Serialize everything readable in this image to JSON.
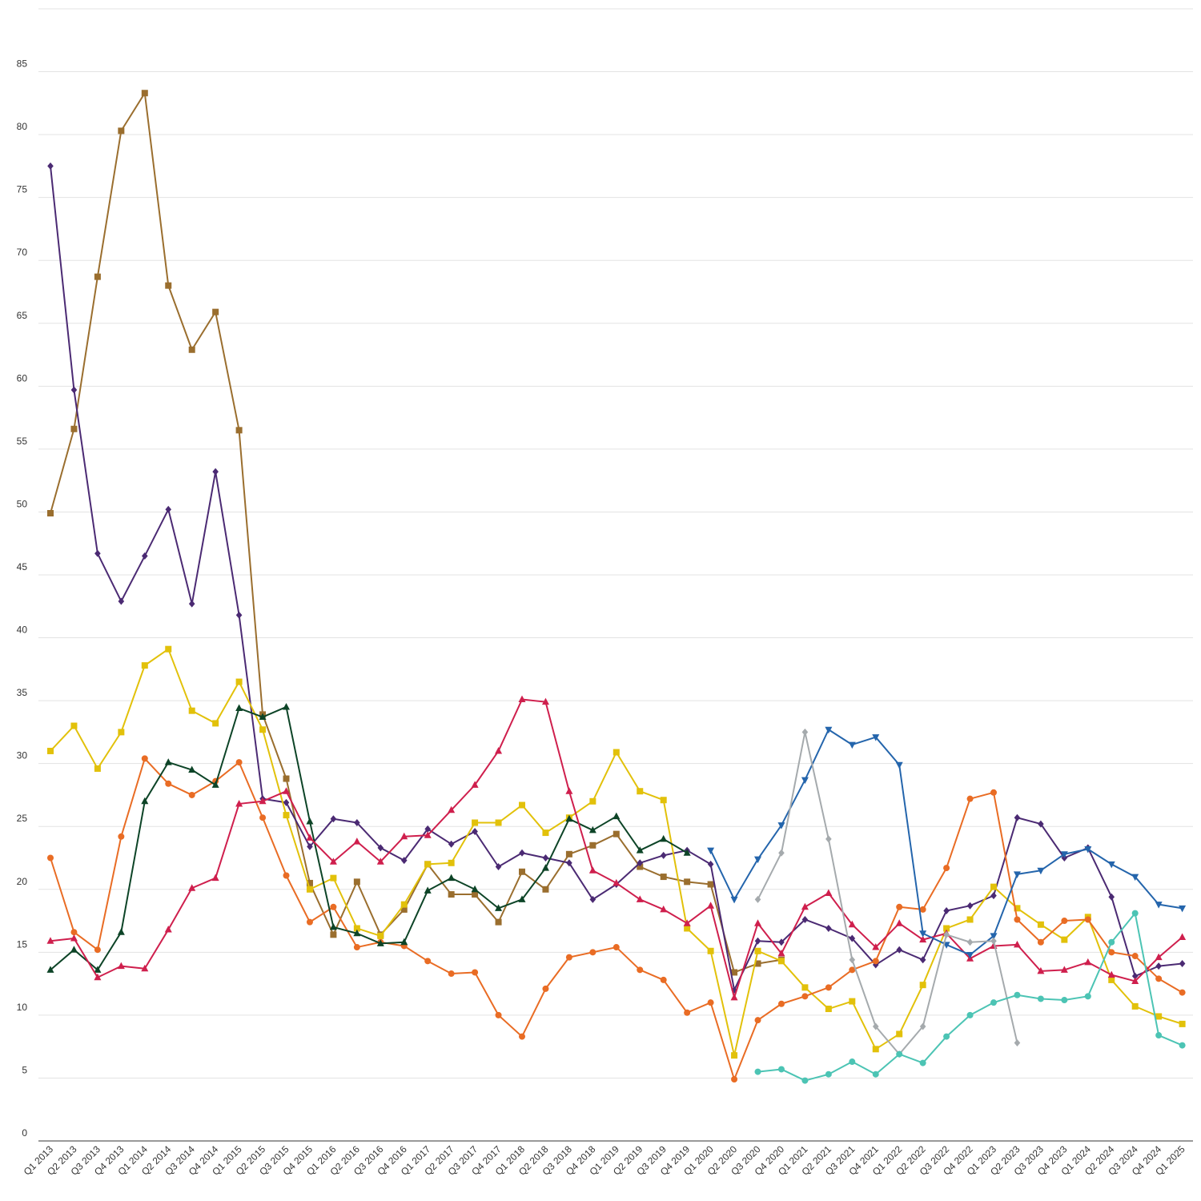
{
  "chart_data": {
    "type": "line",
    "title": "",
    "xlabel": "",
    "ylabel": "",
    "ylim": [
      0,
      90
    ],
    "y_ticks": [
      0,
      5,
      10,
      15,
      20,
      25,
      30,
      35,
      40,
      45,
      50,
      55,
      60,
      65,
      70,
      75,
      80,
      85
    ],
    "grid": true,
    "legend": "none",
    "categories": [
      "Q1 2013",
      "Q2 2013",
      "Q3 2013",
      "Q4 2013",
      "Q1 2014",
      "Q2 2014",
      "Q3 2014",
      "Q4 2014",
      "Q1 2015",
      "Q2 2015",
      "Q3 2015",
      "Q4 2015",
      "Q1 2016",
      "Q2 2016",
      "Q3 2016",
      "Q4 2016",
      "Q1 2017",
      "Q2 2017",
      "Q3 2017",
      "Q4 2017",
      "Q1 2018",
      "Q2 2018",
      "Q3 2018",
      "Q4 2018",
      "Q1 2019",
      "Q2 2019",
      "Q3 2019",
      "Q4 2019",
      "Q1 2020",
      "Q2 2020",
      "Q3 2020",
      "Q4 2020",
      "Q1 2021",
      "Q2 2021",
      "Q3 2021",
      "Q4 2021",
      "Q1 2022",
      "Q2 2022",
      "Q3 2022",
      "Q4 2022",
      "Q1 2023",
      "Q2 2023",
      "Q3 2023",
      "Q4 2023",
      "Q1 2024",
      "Q2 2024",
      "Q3 2024",
      "Q4 2024",
      "Q1 2025"
    ],
    "series": [
      {
        "color": "#9a6e2e",
        "marker": "square",
        "values": [
          49.9,
          56.6,
          68.7,
          80.3,
          83.3,
          68.0,
          62.9,
          65.9,
          56.5,
          33.9,
          28.8,
          20.5,
          16.4,
          20.6,
          16.4,
          18.4,
          22.0,
          19.6,
          19.6,
          17.4,
          21.4,
          20.0,
          22.8,
          23.5,
          24.4,
          21.8,
          21.0,
          20.6,
          20.4,
          13.4,
          14.1,
          14.4,
          null,
          null,
          null,
          null,
          null,
          null,
          null,
          null,
          null,
          null,
          null,
          null,
          null,
          null,
          null,
          null,
          null
        ]
      },
      {
        "color": "#4b2a73",
        "marker": "diamond",
        "values": [
          77.5,
          59.7,
          46.7,
          42.9,
          46.5,
          50.2,
          42.7,
          53.2,
          41.8,
          27.2,
          26.9,
          23.4,
          25.6,
          25.3,
          23.3,
          22.3,
          24.8,
          23.6,
          24.6,
          21.8,
          22.9,
          22.5,
          22.1,
          19.2,
          20.4,
          22.1,
          22.7,
          23.1,
          22.0,
          12.0,
          15.9,
          15.8,
          17.6,
          16.9,
          16.1,
          14.0,
          15.2,
          14.4,
          18.3,
          18.7,
          19.5,
          25.7,
          25.2,
          22.5,
          23.3,
          19.4,
          13.1,
          13.9,
          14.1
        ]
      },
      {
        "color": "#e2c10a",
        "marker": "square",
        "values": [
          31.0,
          33.0,
          29.6,
          32.5,
          37.8,
          39.1,
          34.2,
          33.2,
          36.5,
          32.7,
          25.9,
          20.0,
          20.9,
          16.9,
          16.3,
          18.8,
          22.0,
          22.1,
          25.3,
          25.3,
          26.7,
          24.5,
          25.7,
          27.0,
          30.9,
          27.8,
          27.1,
          16.9,
          15.1,
          6.8,
          15.1,
          14.3,
          12.2,
          10.5,
          11.1,
          7.3,
          8.5,
          12.4,
          16.9,
          17.6,
          20.2,
          18.5,
          17.2,
          16.0,
          17.8,
          12.8,
          10.7,
          9.9,
          9.3
        ]
      },
      {
        "color": "#e96c24",
        "marker": "circle",
        "values": [
          22.5,
          16.6,
          15.2,
          24.2,
          30.4,
          28.4,
          27.5,
          28.6,
          30.1,
          25.7,
          21.1,
          17.4,
          18.6,
          15.4,
          15.8,
          15.5,
          14.3,
          13.3,
          13.4,
          10.0,
          8.3,
          12.1,
          14.6,
          15.0,
          15.4,
          13.6,
          12.8,
          10.2,
          11.0,
          4.9,
          9.6,
          10.9,
          11.5,
          12.2,
          13.6,
          14.3,
          18.6,
          18.4,
          21.7,
          27.2,
          27.7,
          17.6,
          15.8,
          17.5,
          17.6,
          15.0,
          14.7,
          12.9,
          11.8
        ]
      },
      {
        "color": "#0d4427",
        "marker": "triangle",
        "values": [
          13.6,
          15.2,
          13.6,
          16.6,
          27.0,
          30.1,
          29.5,
          28.3,
          34.4,
          33.7,
          34.5,
          25.4,
          17.0,
          16.5,
          15.7,
          15.8,
          19.9,
          20.9,
          20.0,
          18.5,
          19.2,
          21.7,
          25.6,
          24.7,
          25.8,
          23.1,
          24.0,
          22.9,
          null,
          null,
          null,
          null,
          null,
          null,
          null,
          null,
          null,
          null,
          null,
          null,
          null,
          null,
          null,
          null,
          null,
          null,
          null,
          null,
          null
        ]
      },
      {
        "color": "#cf1f4d",
        "marker": "triangle",
        "values": [
          15.9,
          16.1,
          13.0,
          13.9,
          13.7,
          16.8,
          20.1,
          20.9,
          26.8,
          27.0,
          27.8,
          24.1,
          22.2,
          23.8,
          22.2,
          24.2,
          24.3,
          26.3,
          28.3,
          31.0,
          35.1,
          34.9,
          27.8,
          21.5,
          20.5,
          19.2,
          18.4,
          17.3,
          18.7,
          11.4,
          17.3,
          14.9,
          18.6,
          19.7,
          17.2,
          15.4,
          17.3,
          16.0,
          16.5,
          14.5,
          15.5,
          15.6,
          13.5,
          13.6,
          14.2,
          13.2,
          12.7,
          14.6,
          16.2
        ]
      },
      {
        "color": "#2465ac",
        "marker": "triangle-down",
        "values": [
          null,
          null,
          null,
          null,
          null,
          null,
          null,
          null,
          null,
          null,
          null,
          null,
          null,
          null,
          null,
          null,
          null,
          null,
          null,
          null,
          null,
          null,
          null,
          null,
          null,
          null,
          null,
          null,
          23.1,
          19.2,
          22.4,
          25.1,
          28.7,
          32.7,
          31.5,
          32.1,
          29.9,
          16.5,
          15.6,
          14.8,
          16.3,
          21.2,
          21.5,
          22.8,
          23.2,
          22.0,
          21.0,
          18.8,
          18.5
        ]
      },
      {
        "color": "#a5aaad",
        "marker": "diamond",
        "values": [
          null,
          null,
          null,
          null,
          null,
          null,
          null,
          null,
          null,
          null,
          null,
          null,
          null,
          null,
          null,
          null,
          null,
          null,
          null,
          null,
          null,
          null,
          null,
          null,
          null,
          null,
          null,
          null,
          null,
          null,
          19.2,
          22.9,
          32.5,
          24.0,
          14.4,
          9.1,
          6.9,
          9.1,
          16.4,
          15.8,
          15.9,
          7.8,
          null,
          null,
          null,
          null,
          null,
          null,
          null
        ]
      },
      {
        "color": "#4cc4b4",
        "marker": "circle",
        "values": [
          null,
          null,
          null,
          null,
          null,
          null,
          null,
          null,
          null,
          null,
          null,
          null,
          null,
          null,
          null,
          null,
          null,
          null,
          null,
          null,
          null,
          null,
          null,
          null,
          null,
          null,
          null,
          null,
          null,
          null,
          5.5,
          5.7,
          4.8,
          5.3,
          6.3,
          5.3,
          6.9,
          6.2,
          8.3,
          10.0,
          11.0,
          11.6,
          11.3,
          11.2,
          11.5,
          15.8,
          18.1,
          8.4,
          7.6
        ]
      }
    ]
  }
}
